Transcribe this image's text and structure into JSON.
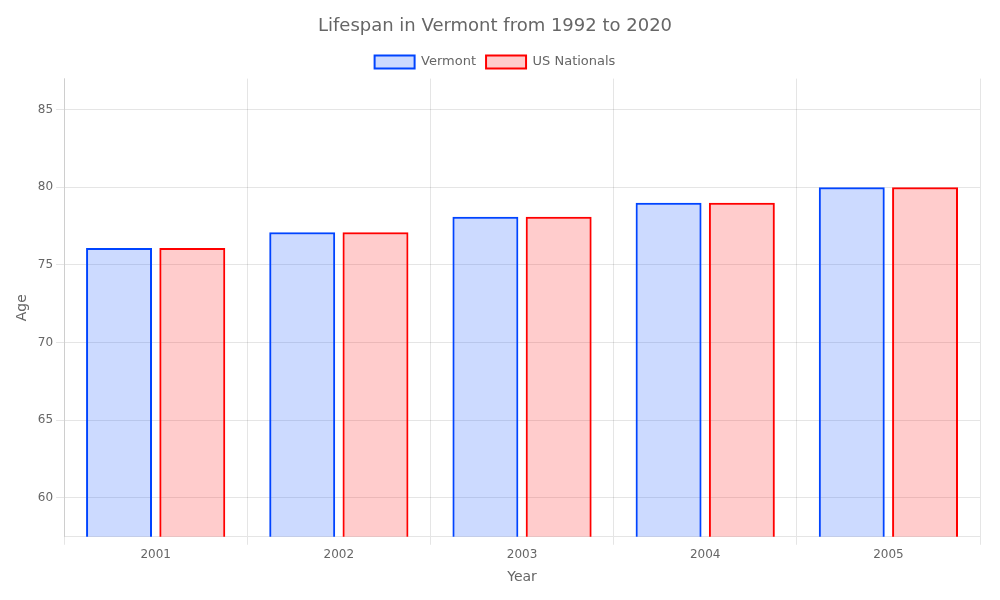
{
  "chart_data": {
    "type": "bar",
    "title": "Lifespan in Vermont from 1992 to 2020",
    "x_label": "Year",
    "y_label": "Age",
    "categories": [
      "2001",
      "2002",
      "2003",
      "2004",
      "2005"
    ],
    "series": [
      {
        "name": "Vermont",
        "color": "#0044ff",
        "values": [
          76.1,
          77.1,
          78.1,
          79.0,
          80.0
        ]
      },
      {
        "name": "US Nationals",
        "color": "#ff0000",
        "values": [
          76.1,
          77.1,
          78.1,
          79.0,
          80.0
        ]
      }
    ],
    "ylim": [
      57.5,
      87
    ],
    "yticks": [
      60,
      65,
      70,
      75,
      80,
      85
    ],
    "grid": true,
    "legend": "top"
  }
}
